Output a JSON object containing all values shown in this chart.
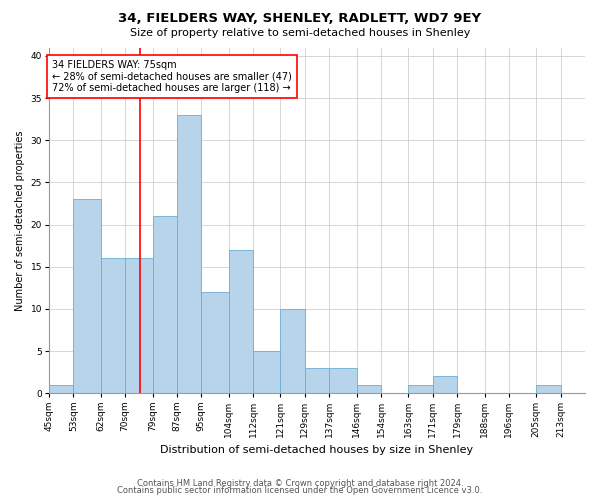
{
  "title": "34, FIELDERS WAY, SHENLEY, RADLETT, WD7 9EY",
  "subtitle": "Size of property relative to semi-detached houses in Shenley",
  "xlabel": "Distribution of semi-detached houses by size in Shenley",
  "ylabel": "Number of semi-detached properties",
  "bins": [
    45,
    53,
    62,
    70,
    79,
    87,
    95,
    104,
    112,
    121,
    129,
    137,
    146,
    154,
    163,
    171,
    179,
    188,
    196,
    205,
    213
  ],
  "bin_labels": [
    "45sqm",
    "53sqm",
    "62sqm",
    "70sqm",
    "79sqm",
    "87sqm",
    "95sqm",
    "104sqm",
    "112sqm",
    "121sqm",
    "129sqm",
    "137sqm",
    "146sqm",
    "154sqm",
    "163sqm",
    "171sqm",
    "179sqm",
    "188sqm",
    "196sqm",
    "205sqm",
    "213sqm"
  ],
  "values": [
    1,
    23,
    16,
    16,
    21,
    33,
    12,
    17,
    5,
    10,
    3,
    3,
    1,
    0,
    1,
    2,
    0,
    0,
    0,
    1,
    0
  ],
  "bar_color": "#b8d4ea",
  "bar_edge_color": "#6aaed6",
  "red_line_x": 75,
  "red_line_label": "34 FIELDERS WAY: 75sqm",
  "annotation_smaller": "← 28% of semi-detached houses are smaller (47)",
  "annotation_larger": "72% of semi-detached houses are larger (118) →",
  "ylim": [
    0,
    41
  ],
  "yticks": [
    0,
    5,
    10,
    15,
    20,
    25,
    30,
    35,
    40
  ],
  "footer1": "Contains HM Land Registry data © Crown copyright and database right 2024.",
  "footer2": "Contains public sector information licensed under the Open Government Licence v3.0.",
  "bg_color": "#ffffff",
  "grid_color": "#d0d0d0",
  "title_fontsize": 9.5,
  "subtitle_fontsize": 8,
  "ylabel_fontsize": 7,
  "xlabel_fontsize": 8,
  "tick_fontsize": 6.5,
  "annotation_fontsize": 7,
  "footer_fontsize": 6
}
